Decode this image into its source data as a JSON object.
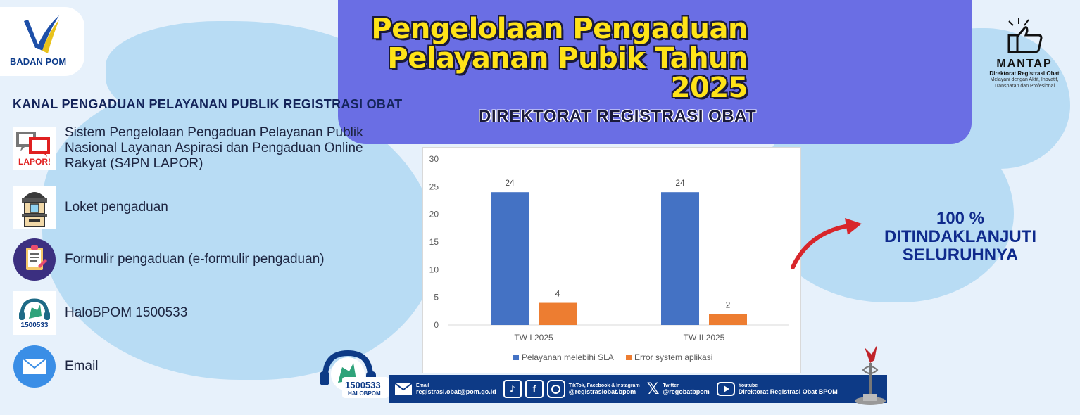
{
  "logo": {
    "text": "BADAN POM"
  },
  "header": {
    "title_line1": "Pengelolaan Pengaduan",
    "title_line2": "Pelayanan Pubik Tahun",
    "title_line3": "2025",
    "subtitle": "DIREKTORAT REGISTRASI OBAT"
  },
  "channels": {
    "title": "KANAL PENGADUAN PELAYANAN PUBLIK REGISTRASI OBAT",
    "items": [
      {
        "icon": "lapor-icon",
        "label_line1": "Sistem Pengelolaan Pengaduan Pelayanan Publik",
        "label_line2": "Nasional  Layanan Aspirasi dan Pengaduan Online",
        "label_line3": "Rakyat (S4PN LAPOR)",
        "icon_text": "LAPOR!"
      },
      {
        "icon": "counter-icon",
        "label": "Loket pengaduan"
      },
      {
        "icon": "form-icon",
        "label": "Formulir pengaduan (e-formulir pengaduan)"
      },
      {
        "icon": "halobpom-icon",
        "label": "HaloBPOM 1500533",
        "icon_text": "1500533"
      },
      {
        "icon": "email-icon",
        "label": "Email"
      }
    ]
  },
  "chart_data": {
    "type": "bar",
    "categories": [
      "TW I 2025",
      "TW II 2025"
    ],
    "series": [
      {
        "name": "Pelayanan melebihi SLA",
        "values": [
          24,
          24
        ],
        "color": "#4472c4"
      },
      {
        "name": "Error system aplikasi",
        "values": [
          4,
          2
        ],
        "color": "#ed7d31"
      }
    ],
    "yticks": [
      0,
      5,
      10,
      15,
      20,
      25,
      30
    ],
    "ylim": [
      0,
      30
    ],
    "legend": "bottom",
    "grid": false
  },
  "callout": {
    "line1": "100 %",
    "line2": "DITINDAKLANJUTI",
    "line3": "SELURUHNYA"
  },
  "mantap": {
    "word": "MANTAP",
    "line1": "Direktorat Registrasi Obat",
    "line2": "Melayani dengan Aktif, Inovatif,",
    "line3": "Transparan dan Profesional"
  },
  "footer": {
    "halo_number": "1500533",
    "halo_brand": "HALOBPOM",
    "email_label": "Email",
    "email_value": "registrasi.obat@pom.go.id",
    "social_label": "TikTok, Facebook & Instagram",
    "social_value": "@registrasiobat.bpom",
    "twitter_label": "Twitter",
    "twitter_value": "@regobatbpom",
    "youtube_label": "Youtube",
    "youtube_value": "Direktorat Registrasi Obat BPOM"
  }
}
